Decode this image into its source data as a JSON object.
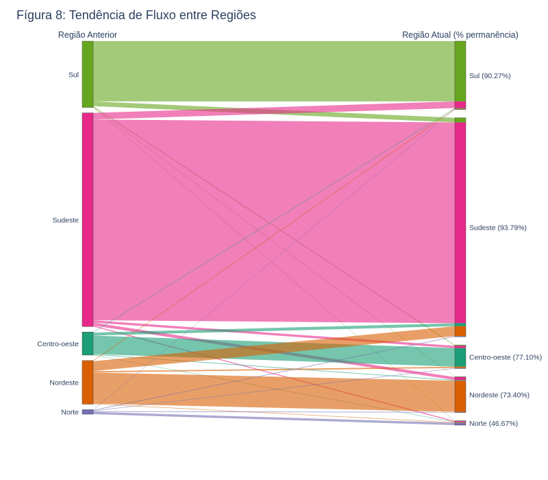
{
  "chart_data": {
    "type": "sankey",
    "title": "Fígura 8: Tendência de Fluxo entre Regiões",
    "source_header": "Região Anterior",
    "target_header": "Região Atual (% permanência)",
    "colors": {
      "Sul": "#66a61e",
      "Sudeste": "#e7298a",
      "Centro-oeste": "#1b9e77",
      "Nordeste": "#d95f02",
      "Norte": "#7570b3"
    },
    "sources": [
      {
        "id": "Sul",
        "label": "Sul"
      },
      {
        "id": "Sudeste",
        "label": "Sudeste"
      },
      {
        "id": "Centro-oeste",
        "label": "Centro-oeste"
      },
      {
        "id": "Nordeste",
        "label": "Nordeste"
      },
      {
        "id": "Norte",
        "label": "Norte"
      }
    ],
    "targets": [
      {
        "id": "Sul",
        "label": "Sul (90.27%)",
        "retention": 90.27
      },
      {
        "id": "Sudeste",
        "label": "Sudeste (93.79%)",
        "retention": 93.79
      },
      {
        "id": "Centro-oeste",
        "label": "Centro-oeste (77.10%)",
        "retention": 77.1
      },
      {
        "id": "Nordeste",
        "label": "Nordeste (73.40%)",
        "retention": 73.4
      },
      {
        "id": "Norte",
        "label": "Norte (46.67%)",
        "retention": 46.67
      }
    ],
    "links": [
      {
        "source": "Sul",
        "target": "Sul",
        "value": 91
      },
      {
        "source": "Sul",
        "target": "Sudeste",
        "value": 7
      },
      {
        "source": "Sul",
        "target": "Centro-oeste",
        "value": 1.2
      },
      {
        "source": "Sul",
        "target": "Nordeste",
        "value": 0.5
      },
      {
        "source": "Sul",
        "target": "Norte",
        "value": 0.3
      },
      {
        "source": "Sudeste",
        "target": "Sul",
        "value": 10
      },
      {
        "source": "Sudeste",
        "target": "Sudeste",
        "value": 303
      },
      {
        "source": "Sudeste",
        "target": "Centro-oeste",
        "value": 3.5
      },
      {
        "source": "Sudeste",
        "target": "Nordeste",
        "value": 4.5
      },
      {
        "source": "Sudeste",
        "target": "Norte",
        "value": 1.5
      },
      {
        "source": "Centro-oeste",
        "target": "Sul",
        "value": 0.8
      },
      {
        "source": "Centro-oeste",
        "target": "Sudeste",
        "value": 4.5
      },
      {
        "source": "Centro-oeste",
        "target": "Centro-oeste",
        "value": 28
      },
      {
        "source": "Centro-oeste",
        "target": "Nordeste",
        "value": 1.0
      },
      {
        "source": "Centro-oeste",
        "target": "Norte",
        "value": 0.5
      },
      {
        "source": "Nordeste",
        "target": "Sul",
        "value": 1.0
      },
      {
        "source": "Nordeste",
        "target": "Sudeste",
        "value": 15
      },
      {
        "source": "Nordeste",
        "target": "Centro-oeste",
        "value": 2.0
      },
      {
        "source": "Nordeste",
        "target": "Nordeste",
        "value": 47
      },
      {
        "source": "Nordeste",
        "target": "Norte",
        "value": 0.8
      },
      {
        "source": "Norte",
        "target": "Sul",
        "value": 0.5
      },
      {
        "source": "Norte",
        "target": "Sudeste",
        "value": 1.0
      },
      {
        "source": "Norte",
        "target": "Centro-oeste",
        "value": 0.8
      },
      {
        "source": "Norte",
        "target": "Nordeste",
        "value": 1.0
      },
      {
        "source": "Norte",
        "target": "Norte",
        "value": 3.5
      }
    ]
  }
}
